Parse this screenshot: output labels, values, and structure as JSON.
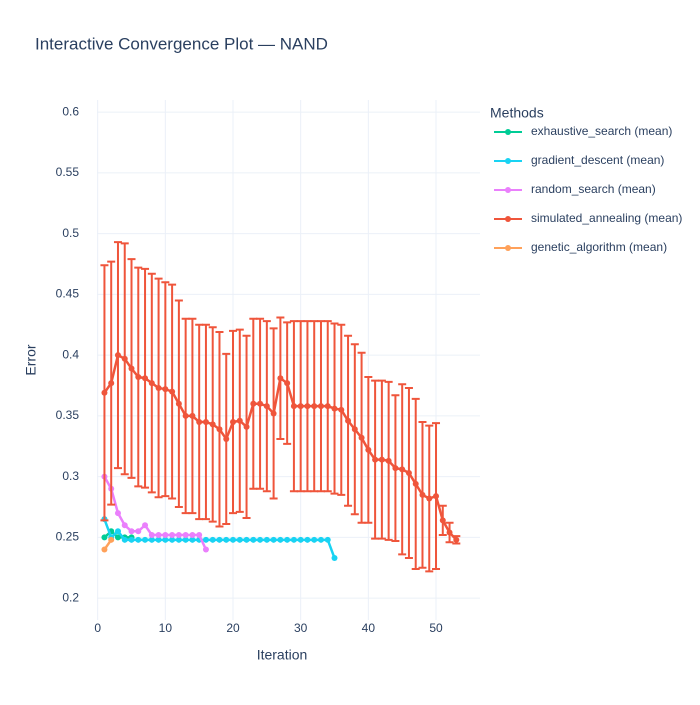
{
  "chart_data": {
    "type": "line",
    "title": "Interactive Convergence Plot — NAND",
    "x_label": "Iteration",
    "y_label": "Error",
    "legend_title": "Methods",
    "legend": "right",
    "grid": true,
    "xlim": [
      -0.1,
      56.5
    ],
    "ylim": [
      0.182,
      0.61
    ],
    "xticks": [
      0,
      10,
      20,
      30,
      40,
      50
    ],
    "yticks": [
      0.2,
      0.25,
      0.3,
      0.35,
      0.4,
      0.45,
      0.5,
      0.55,
      0.6
    ],
    "series": [
      {
        "name": "exhaustive_search (mean)",
        "color": "#00cc96",
        "x": [
          1,
          2,
          3,
          4,
          5
        ],
        "values": [
          0.25,
          0.255,
          0.25,
          0.25,
          0.25
        ]
      },
      {
        "name": "gradient_descent (mean)",
        "color": "#19d3f3",
        "x": [
          1,
          2,
          3,
          4,
          5,
          6,
          7,
          8,
          9,
          10,
          11,
          12,
          13,
          14,
          15,
          16,
          17,
          18,
          19,
          20,
          21,
          22,
          23,
          24,
          25,
          26,
          27,
          28,
          29,
          30,
          31,
          32,
          33,
          34,
          35
        ],
        "values": [
          0.265,
          0.25,
          0.255,
          0.248,
          0.248,
          0.248,
          0.248,
          0.248,
          0.248,
          0.248,
          0.248,
          0.248,
          0.248,
          0.248,
          0.248,
          0.248,
          0.248,
          0.248,
          0.248,
          0.248,
          0.248,
          0.248,
          0.248,
          0.248,
          0.248,
          0.248,
          0.248,
          0.248,
          0.248,
          0.248,
          0.248,
          0.248,
          0.248,
          0.248,
          0.233
        ]
      },
      {
        "name": "random_search (mean)",
        "color": "#ea80fc",
        "x": [
          1,
          2,
          3,
          4,
          5,
          6,
          7,
          8,
          9,
          10,
          11,
          12,
          13,
          14,
          15,
          16
        ],
        "values": [
          0.3,
          0.29,
          0.27,
          0.26,
          0.255,
          0.255,
          0.26,
          0.252,
          0.252,
          0.252,
          0.252,
          0.252,
          0.252,
          0.252,
          0.252,
          0.24
        ]
      },
      {
        "name": "simulated_annealing (mean)",
        "color": "#ef553b",
        "x": [
          1,
          2,
          3,
          4,
          5,
          6,
          7,
          8,
          9,
          10,
          11,
          12,
          13,
          14,
          15,
          16,
          17,
          18,
          19,
          20,
          21,
          22,
          23,
          24,
          25,
          26,
          27,
          28,
          29,
          30,
          31,
          32,
          33,
          34,
          35,
          36,
          37,
          38,
          39,
          40,
          41,
          42,
          43,
          44,
          45,
          46,
          47,
          48,
          49,
          50,
          51,
          52,
          53
        ],
        "values": [
          0.369,
          0.377,
          0.4,
          0.397,
          0.389,
          0.382,
          0.381,
          0.377,
          0.373,
          0.372,
          0.37,
          0.36,
          0.35,
          0.35,
          0.345,
          0.345,
          0.343,
          0.339,
          0.331,
          0.345,
          0.346,
          0.341,
          0.36,
          0.36,
          0.358,
          0.352,
          0.381,
          0.377,
          0.358,
          0.358,
          0.358,
          0.358,
          0.358,
          0.358,
          0.356,
          0.355,
          0.346,
          0.339,
          0.332,
          0.322,
          0.314,
          0.314,
          0.313,
          0.307,
          0.306,
          0.303,
          0.294,
          0.285,
          0.282,
          0.284,
          0.264,
          0.254,
          0.248
        ],
        "errors": [
          0.105,
          0.1,
          0.093,
          0.095,
          0.09,
          0.09,
          0.09,
          0.09,
          0.09,
          0.088,
          0.088,
          0.085,
          0.08,
          0.08,
          0.08,
          0.08,
          0.08,
          0.08,
          0.07,
          0.075,
          0.075,
          0.075,
          0.07,
          0.07,
          0.07,
          0.07,
          0.05,
          0.05,
          0.07,
          0.07,
          0.07,
          0.07,
          0.07,
          0.07,
          0.07,
          0.07,
          0.07,
          0.07,
          0.07,
          0.06,
          0.065,
          0.065,
          0.065,
          0.06,
          0.07,
          0.07,
          0.07,
          0.06,
          0.06,
          0.06,
          0.012,
          0.008,
          0.003
        ]
      },
      {
        "name": "genetic_algorithm (mean)",
        "color": "#ffa15a",
        "x": [
          1,
          2
        ],
        "values": [
          0.24,
          0.248
        ]
      }
    ]
  }
}
